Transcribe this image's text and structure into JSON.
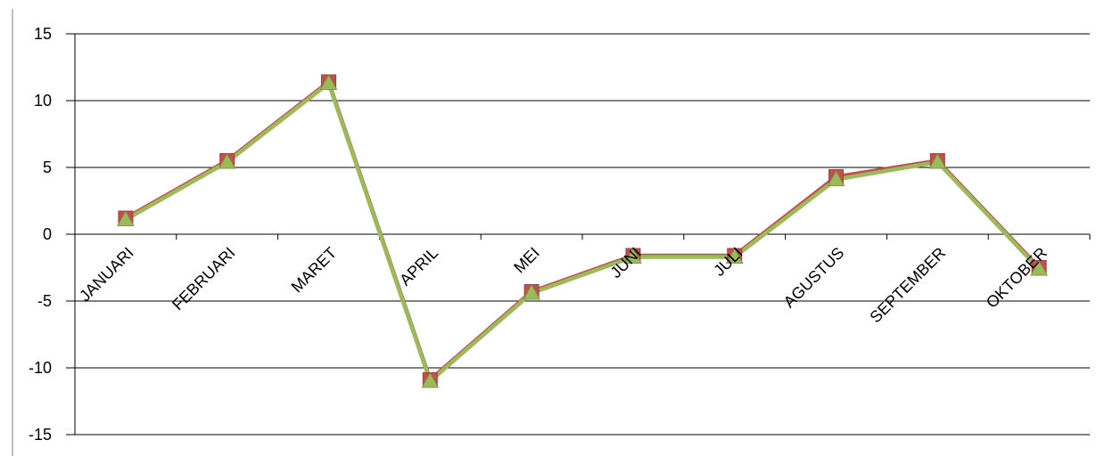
{
  "chart_data": {
    "type": "line",
    "categories": [
      "JANUARI",
      "FEBRUARI",
      "MARET",
      "APRIL",
      "MEI",
      "JUNI",
      "JULI",
      "AGUSTUS",
      "SEPTEMBER",
      "OKTOBER"
    ],
    "series": [
      {
        "marker": "square",
        "color": "#c0504d",
        "values": [
          1.2,
          5.5,
          11.4,
          -10.9,
          -4.3,
          -1.6,
          -1.6,
          4.3,
          5.5,
          -2.5
        ]
      },
      {
        "marker": "triangle",
        "color": "#9bbb59",
        "values": [
          1.1,
          5.4,
          11.3,
          -11.0,
          -4.4,
          -1.7,
          -1.7,
          4.1,
          5.4,
          -2.6
        ]
      }
    ],
    "yticks": [
      "15",
      "10",
      "5",
      "0",
      "-5",
      "-10",
      "-15"
    ],
    "ytick_values": [
      15,
      10,
      5,
      0,
      -5,
      -10,
      -15
    ],
    "ylim": [
      -15,
      15
    ],
    "grid": true,
    "legend": "none",
    "title": "",
    "xlabel": "",
    "ylabel": ""
  }
}
